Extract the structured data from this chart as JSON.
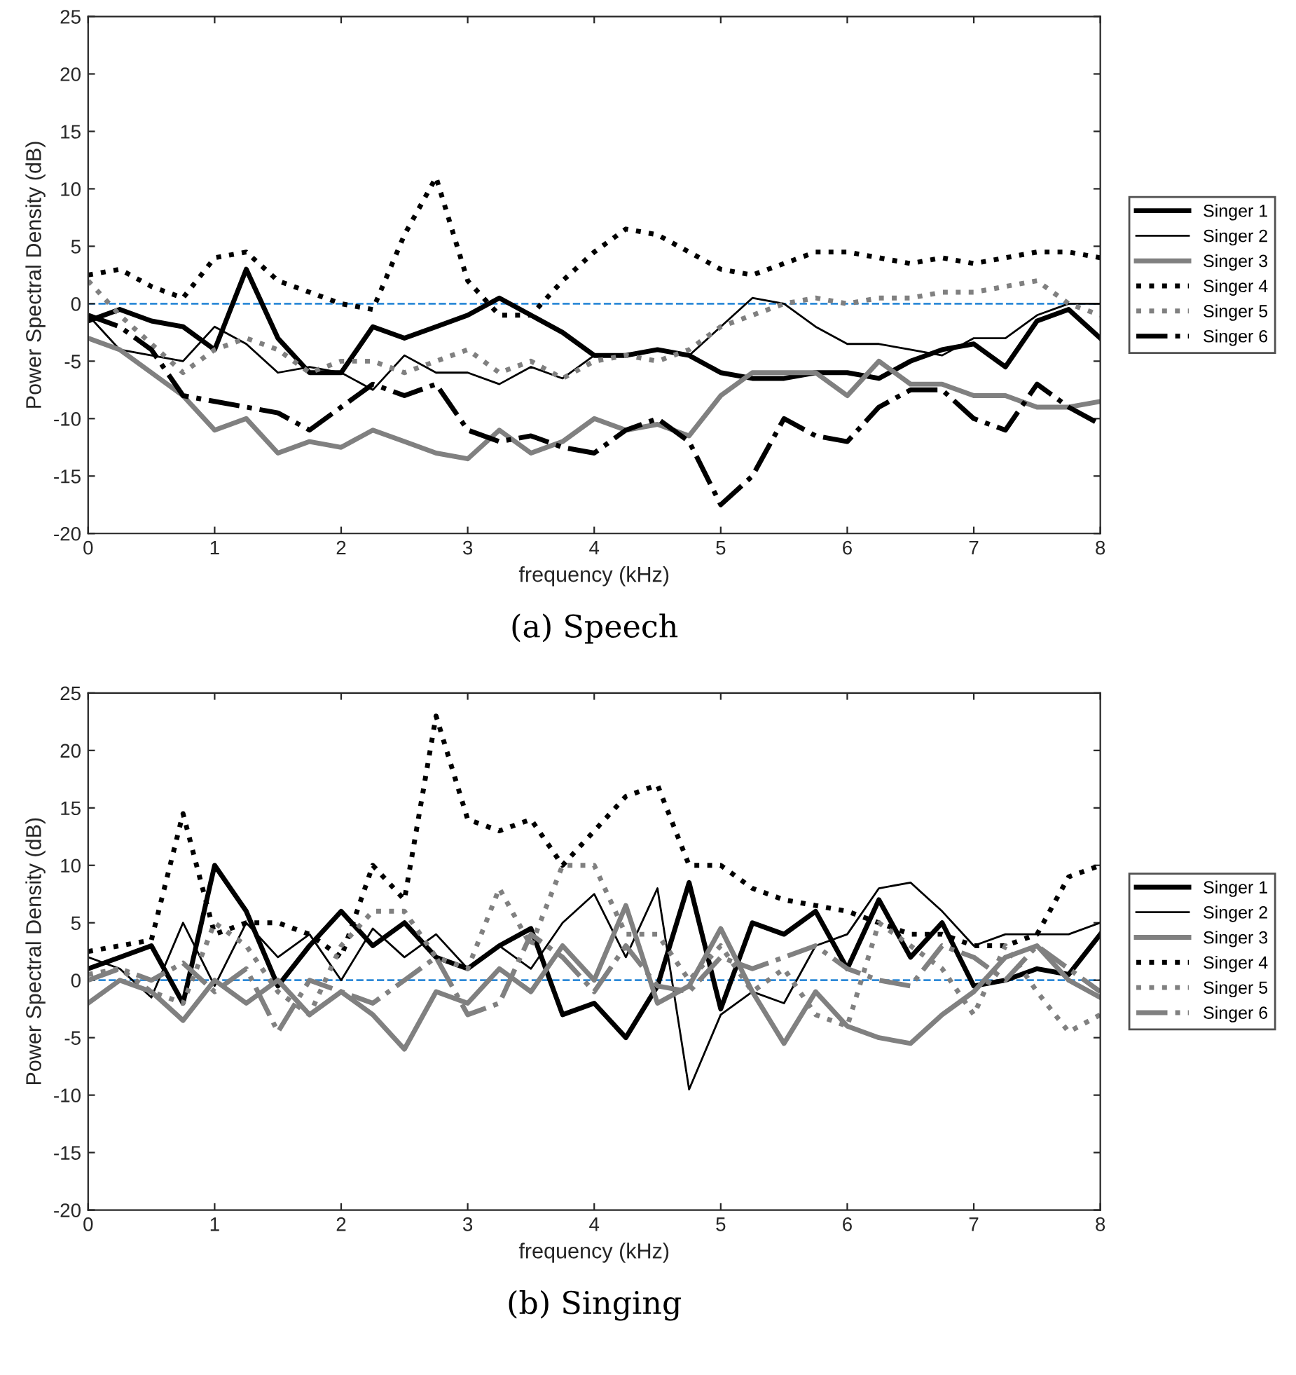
{
  "chart_data": [
    {
      "type": "line",
      "title": "(a) Speech",
      "xlabel": "frequency (kHz)",
      "ylabel": "Power Spectral Density (dB)",
      "x": [
        0,
        0.25,
        0.5,
        0.75,
        1,
        1.25,
        1.5,
        1.75,
        2,
        2.25,
        2.5,
        2.75,
        3,
        3.25,
        3.5,
        3.75,
        4,
        4.25,
        4.5,
        4.75,
        5,
        5.25,
        5.5,
        5.75,
        6,
        6.25,
        6.5,
        6.75,
        7,
        7.25,
        7.5,
        7.75,
        8
      ],
      "xlim": [
        0,
        8
      ],
      "xticks": [
        0,
        1,
        2,
        3,
        4,
        5,
        6,
        7,
        8
      ],
      "ylim": [
        -20,
        25
      ],
      "yticks": [
        -20,
        -15,
        -10,
        -5,
        0,
        5,
        10,
        15,
        20,
        25
      ],
      "grid": false,
      "legend": "right",
      "marker": "none",
      "ref_lines": [
        {
          "axis": "y",
          "value": 0,
          "label": null,
          "color": "#2e8ad8",
          "line_style": "dashed"
        }
      ],
      "series": [
        {
          "name": "Singer 1",
          "color": "#000000",
          "line_style": "solid",
          "values": [
            -1.5,
            -0.5,
            -1.5,
            -2,
            -4,
            3,
            -3,
            -6,
            -6,
            -2,
            -3,
            -2,
            -1,
            0.5,
            -1,
            -2.5,
            -4.5,
            -4.5,
            -4,
            -4.5,
            -6,
            -6.5,
            -6.5,
            -6,
            -6,
            -6.5,
            -5,
            -4,
            -3.5,
            -5.5,
            -1.5,
            -0.5,
            -3
          ]
        },
        {
          "name": "Singer 2",
          "color": "#000000",
          "line_style": "solid",
          "values": [
            -1,
            -4,
            -4.5,
            -5,
            -2,
            -3.5,
            -6,
            -5.5,
            -6,
            -7.5,
            -4.5,
            -6,
            -6,
            -7,
            -5.5,
            -6.5,
            -4.5,
            -4.5,
            -4,
            -4.5,
            -2,
            0.5,
            0,
            -2,
            -3.5,
            -3.5,
            -4,
            -4.5,
            -3,
            -3,
            -1,
            0,
            0
          ]
        },
        {
          "name": "Singer 3",
          "color": "#808080",
          "line_style": "solid",
          "values": [
            -3,
            -4,
            -6,
            -8,
            -11,
            -10,
            -13,
            -12,
            -12.5,
            -11,
            -12,
            -13,
            -13.5,
            -11,
            -13,
            -12,
            -10,
            -11,
            -10.5,
            -11.5,
            -8,
            -6,
            -6,
            -6,
            -8,
            -5,
            -7,
            -7,
            -8,
            -8,
            -9,
            -9,
            -8.5
          ]
        },
        {
          "name": "Singer 4",
          "color": "#000000",
          "line_style": "dotted",
          "values": [
            2.5,
            3,
            1.5,
            0.5,
            4,
            4.5,
            2,
            1,
            0,
            -0.5,
            6,
            11,
            2,
            -1,
            -1,
            2,
            4.5,
            6.5,
            6,
            4.5,
            3,
            2.5,
            3.5,
            4.5,
            4.5,
            4,
            3.5,
            4,
            3.5,
            4,
            4.5,
            4.5,
            4
          ]
        },
        {
          "name": "Singer 5",
          "color": "#808080",
          "line_style": "dotted",
          "values": [
            2,
            -1,
            -3.5,
            -6,
            -4,
            -3,
            -4,
            -6,
            -5,
            -5,
            -6,
            -5,
            -4,
            -6,
            -5,
            -6.5,
            -5,
            -4.5,
            -5,
            -4,
            -2,
            -1,
            0,
            0.5,
            0,
            0.5,
            0.5,
            1,
            1,
            1.5,
            2,
            0,
            -1
          ]
        },
        {
          "name": "Singer 6",
          "color": "#000000",
          "line_style": "dashdot",
          "values": [
            -1,
            -2,
            -4,
            -8,
            -8.5,
            -9,
            -9.5,
            -11,
            -9,
            -7,
            -8,
            -7,
            -11,
            -12,
            -11.5,
            -12.5,
            -13,
            -11,
            -10,
            -12,
            -17.5,
            -15,
            -10,
            -11.5,
            -12,
            -9,
            -7.5,
            -7.5,
            -10,
            -11,
            -7,
            -9,
            -10.5
          ]
        }
      ]
    },
    {
      "type": "line",
      "title": "(b) Singing",
      "xlabel": "frequency (kHz)",
      "ylabel": "Power Spectral Density (dB)",
      "x": [
        0,
        0.25,
        0.5,
        0.75,
        1,
        1.25,
        1.5,
        1.75,
        2,
        2.25,
        2.5,
        2.75,
        3,
        3.25,
        3.5,
        3.75,
        4,
        4.25,
        4.5,
        4.75,
        5,
        5.25,
        5.5,
        5.75,
        6,
        6.25,
        6.5,
        6.75,
        7,
        7.25,
        7.5,
        7.75,
        8
      ],
      "xlim": [
        0,
        8
      ],
      "xticks": [
        0,
        1,
        2,
        3,
        4,
        5,
        6,
        7,
        8
      ],
      "ylim": [
        -20,
        25
      ],
      "yticks": [
        -20,
        -15,
        -10,
        -5,
        0,
        5,
        10,
        15,
        20,
        25
      ],
      "grid": false,
      "legend": "right",
      "marker": "none",
      "ref_lines": [
        {
          "axis": "y",
          "value": 0,
          "label": null,
          "color": "#2e8ad8",
          "line_style": "dashed"
        }
      ],
      "series": [
        {
          "name": "Singer 1",
          "color": "#000000",
          "line_style": "solid",
          "values": [
            1,
            2,
            3,
            -2,
            10,
            6,
            -0.5,
            3,
            6,
            3,
            5,
            2,
            1,
            3,
            4.5,
            -3,
            -2,
            -5,
            -0.5,
            8.5,
            -2.5,
            5,
            4,
            6,
            1,
            7,
            2,
            5,
            -0.5,
            0,
            1,
            0.5,
            4
          ]
        },
        {
          "name": "Singer 2",
          "color": "#000000",
          "line_style": "solid",
          "values": [
            2,
            1,
            -1.5,
            5,
            -0.5,
            5,
            2,
            4,
            0,
            4.5,
            2,
            4,
            1,
            3,
            1,
            5,
            7.5,
            2,
            8,
            -9.5,
            -3,
            -1,
            -2,
            3,
            4,
            8,
            8.5,
            6,
            3,
            4,
            4,
            4,
            5
          ]
        },
        {
          "name": "Singer 3",
          "color": "#808080",
          "line_style": "solid",
          "values": [
            -2,
            0,
            -1,
            -3.5,
            0,
            -2,
            0,
            -3,
            -1,
            -3,
            -6,
            -1,
            -2,
            1,
            -1,
            3,
            0,
            6.5,
            -2,
            -0.5,
            4.5,
            -1,
            -5.5,
            -1,
            -4,
            -5,
            -5.5,
            -3,
            -1,
            2,
            3,
            0,
            -1.5
          ]
        },
        {
          "name": "Singer 4",
          "color": "#000000",
          "line_style": "dotted",
          "values": [
            2.5,
            3,
            3.5,
            14.5,
            4,
            5,
            5,
            4,
            2,
            10,
            7,
            23,
            14,
            13,
            14,
            10,
            13,
            16,
            17,
            10,
            10,
            8,
            7,
            6.5,
            6,
            5,
            4,
            4,
            3,
            3,
            4,
            9,
            10
          ]
        },
        {
          "name": "Singer 5",
          "color": "#808080",
          "line_style": "dotted",
          "values": [
            0.5,
            1,
            -1,
            -2,
            5,
            3,
            -1,
            -3,
            3,
            6,
            6,
            2,
            1,
            8,
            3,
            10,
            10,
            4,
            4,
            0,
            3,
            -1,
            1,
            -3,
            -4,
            5,
            3,
            1,
            -3,
            3,
            -1,
            -4.5,
            -3
          ]
        },
        {
          "name": "Singer 6",
          "color": "#808080",
          "line_style": "dashdot",
          "values": [
            0,
            1,
            0,
            1.5,
            -1,
            1,
            -4.5,
            0,
            -1,
            -2,
            0,
            2,
            -3,
            -2,
            4,
            2,
            -1,
            3,
            -0.5,
            -1,
            2,
            1,
            2,
            3,
            1,
            0,
            -0.5,
            3,
            2,
            0,
            3,
            1,
            -1
          ]
        }
      ]
    }
  ]
}
